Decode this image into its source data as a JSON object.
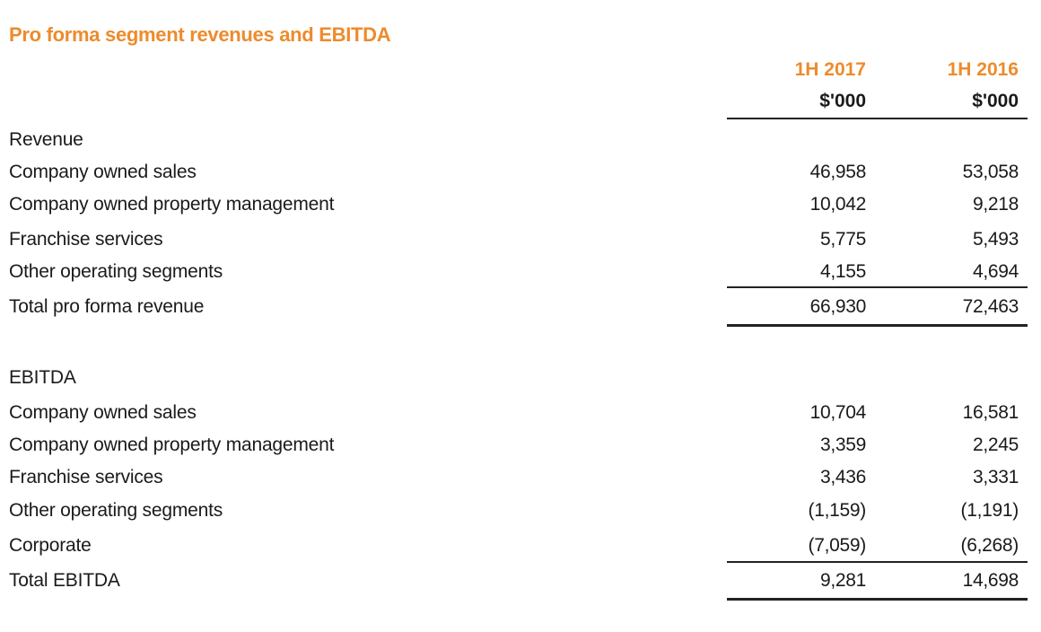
{
  "title": "Pro forma segment revenues and EBITDA",
  "columns": [
    {
      "period": "1H 2017",
      "unit": "$'000"
    },
    {
      "period": "1H 2016",
      "unit": "$'000"
    }
  ],
  "revenue": {
    "heading": "Revenue",
    "rows": [
      {
        "label": "Company owned sales",
        "v2017": "46,958",
        "v2016": "53,058"
      },
      {
        "label": "Company owned property management",
        "v2017": "10,042",
        "v2016": "9,218"
      },
      {
        "label": "Franchise services",
        "v2017": "5,775",
        "v2016": "5,493"
      },
      {
        "label": "Other operating segments",
        "v2017": "4,155",
        "v2016": "4,694"
      }
    ],
    "total": {
      "label": "Total pro forma revenue",
      "v2017": "66,930",
      "v2016": "72,463"
    }
  },
  "ebitda": {
    "heading": "EBITDA",
    "rows": [
      {
        "label": "Company owned sales",
        "v2017": "10,704",
        "v2016": "16,581"
      },
      {
        "label": "Company owned property management",
        "v2017": "3,359",
        "v2016": "2,245"
      },
      {
        "label": "Franchise services",
        "v2017": "3,436",
        "v2016": "3,331"
      },
      {
        "label": "Other operating segments",
        "v2017": "(1,159)",
        "v2016": "(1,191)"
      },
      {
        "label": "Corporate",
        "v2017": "(7,059)",
        "v2016": "(6,268)"
      }
    ],
    "total": {
      "label": "Total EBITDA",
      "v2017": "9,281",
      "v2016": "14,698"
    }
  }
}
